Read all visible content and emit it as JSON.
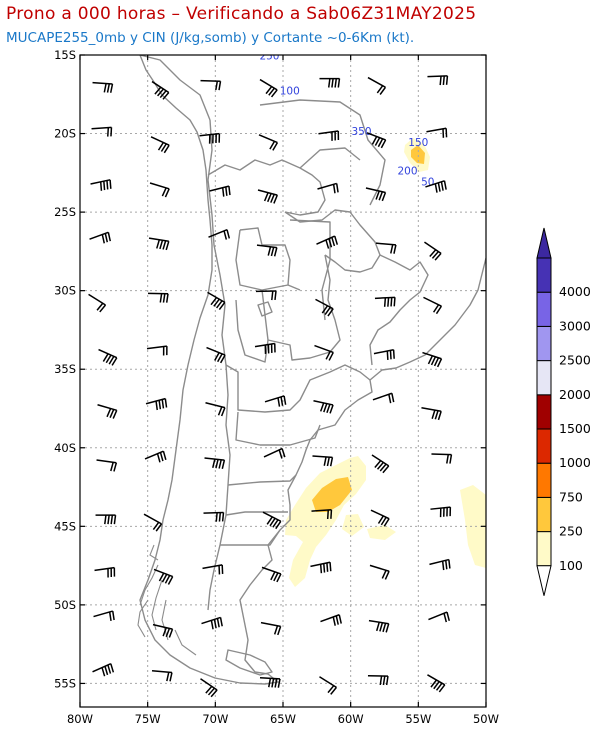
{
  "header": {
    "title": "Prono a 000 horas – Verificando a Sab06Z31MAY2025",
    "subtitle": "MUCAPE255_0mb y CIN (J/kg,somb) y Cortante ~0-6Km (kt)."
  },
  "map": {
    "lon_range": [
      -80,
      -50
    ],
    "lat_range": [
      -56.5,
      -15
    ],
    "grid": true,
    "lat_ticks": [
      {
        "value": -15,
        "label": "15S"
      },
      {
        "value": -20,
        "label": "20S"
      },
      {
        "value": -25,
        "label": "25S"
      },
      {
        "value": -30,
        "label": "30S"
      },
      {
        "value": -35,
        "label": "35S"
      },
      {
        "value": -40,
        "label": "40S"
      },
      {
        "value": -45,
        "label": "45S"
      },
      {
        "value": -50,
        "label": "50S"
      },
      {
        "value": -55,
        "label": "55S"
      }
    ],
    "lon_ticks": [
      {
        "value": -80,
        "label": "80W"
      },
      {
        "value": -75,
        "label": "75W"
      },
      {
        "value": -70,
        "label": "70W"
      },
      {
        "value": -65,
        "label": "65W"
      },
      {
        "value": -60,
        "label": "60W"
      },
      {
        "value": -55,
        "label": "55W"
      },
      {
        "value": -50,
        "label": "50W"
      }
    ],
    "cin_contour_labels": [
      {
        "text": "250",
        "lon": -66,
        "lat": -15.3
      },
      {
        "text": "100",
        "lon": -64.5,
        "lat": -17.5
      },
      {
        "text": "350",
        "lon": -59.2,
        "lat": -20.1
      },
      {
        "text": "150",
        "lon": -55,
        "lat": -20.8
      },
      {
        "text": "200",
        "lon": -55.8,
        "lat": -22.6
      },
      {
        "text": "50",
        "lon": -54.3,
        "lat": -23.3
      }
    ],
    "contour_color": "#3344dd"
  },
  "colorbar": {
    "levels": [
      "100",
      "250",
      "750",
      "1000",
      "1500",
      "2000",
      "2500",
      "3000",
      "4000"
    ],
    "colors": [
      "#fffac8",
      "#ffc83c",
      "#ff7800",
      "#dc2800",
      "#a00000",
      "#e6e6f5",
      "#a096f0",
      "#7864e6",
      "#4632b4"
    ],
    "under_color": "#ffffff",
    "over_color": "#3c28a0"
  }
}
